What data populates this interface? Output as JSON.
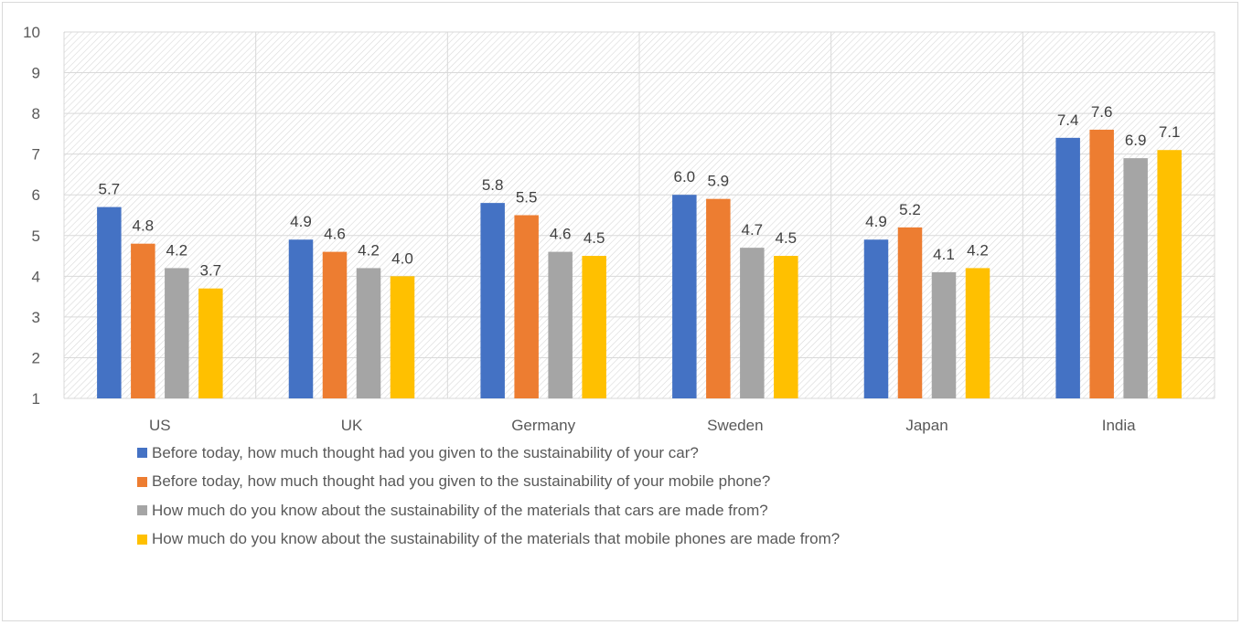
{
  "chart_data": {
    "type": "bar",
    "categories": [
      "US",
      "UK",
      "Germany",
      "Sweden",
      "Japan",
      "India"
    ],
    "series": [
      {
        "name": "Before today, how much thought had you given to the sustainability of your car?",
        "color": "#4472c4",
        "values": [
          5.7,
          4.9,
          5.8,
          6.0,
          4.9,
          7.4
        ]
      },
      {
        "name": "Before today, how much thought had you given to the sustainability of your mobile phone?",
        "color": "#ed7d31",
        "values": [
          4.8,
          4.6,
          5.5,
          5.9,
          5.2,
          7.6
        ]
      },
      {
        "name": "How much do you know about the sustainability of the materials that cars are made from?",
        "color": "#a5a5a5",
        "values": [
          4.2,
          4.2,
          4.6,
          4.7,
          4.1,
          6.9
        ]
      },
      {
        "name": "How much do you know about the sustainability of the materials that mobile phones are made from?",
        "color": "#ffc000",
        "values": [
          3.7,
          4.0,
          4.5,
          4.5,
          4.2,
          7.1
        ]
      }
    ],
    "ylim": [
      1,
      10
    ],
    "yticks": [
      1,
      2,
      3,
      4,
      5,
      6,
      7,
      8,
      9,
      10
    ],
    "grid": true,
    "legend_position": "bottom",
    "title": "",
    "xlabel": "",
    "ylabel": ""
  }
}
